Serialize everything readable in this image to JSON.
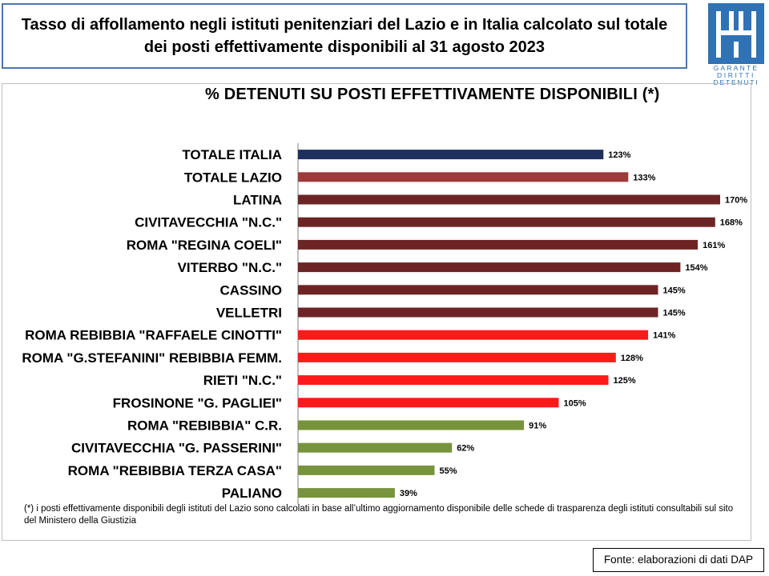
{
  "header": {
    "title_line1": "Tasso di affollamento negli istituti penitenziari del Lazio e in Italia calcolato sul totale",
    "title_line2": "dei posti effettivamente disponibili al 31 agosto 2023"
  },
  "logo": {
    "word1": "GARANTE",
    "word2": "DIRITTI",
    "word3": "DETENUTI",
    "color": "#2f72b5"
  },
  "chart_data": {
    "type": "bar",
    "orientation": "horizontal",
    "title": "% DETENUTI SU POSTI EFFETTIVAMENTE DISPONIBILI (*)",
    "xlabel": "",
    "ylabel": "",
    "xlim": [
      0,
      175
    ],
    "grid": false,
    "categories": [
      "TOTALE ITALIA",
      "TOTALE LAZIO",
      "LATINA",
      "CIVITAVECCHIA \"N.C.\"",
      "ROMA \"REGINA COELI\"",
      "VITERBO \"N.C.\"",
      "CASSINO",
      "VELLETRI",
      "ROMA REBIBBIA \"RAFFAELE CINOTTI\"",
      "ROMA \"G.STEFANINI\" REBIBBIA FEMM.",
      "RIETI \"N.C.\"",
      "FROSINONE \"G. PAGLIEI\"",
      "ROMA \"REBIBBIA\" C.R.",
      "CIVITAVECCHIA \"G. PASSERINI\"",
      "ROMA \"REBIBBIA TERZA CASA\"",
      "PALIANO"
    ],
    "values": [
      123,
      133,
      170,
      168,
      161,
      154,
      145,
      145,
      141,
      128,
      125,
      105,
      91,
      62,
      55,
      39
    ],
    "value_labels": [
      "123%",
      "133%",
      "170%",
      "168%",
      "161%",
      "154%",
      "145%",
      "145%",
      "141%",
      "128%",
      "125%",
      "105%",
      "91%",
      "62%",
      "55%",
      "39%"
    ],
    "colors": [
      "#1f2f5e",
      "#9e3a3a",
      "#6e2424",
      "#6e2424",
      "#6e2424",
      "#6e2424",
      "#6e2424",
      "#6e2424",
      "#ff1a1a",
      "#ff1a1a",
      "#ff1a1a",
      "#ff1a1a",
      "#77933c",
      "#77933c",
      "#77933c",
      "#77933c"
    ],
    "axis_color": "#7f7f7f"
  },
  "footnote": "(*) i posti effettivamente disponibili  degli istituti del Lazio sono  calcolati in base all’ultimo aggiornamento disponibile  delle schede  di trasparenza degli istituti consultabili sul sito del Ministero della Giustizia",
  "source": "Fonte: elaborazioni di dati DAP"
}
